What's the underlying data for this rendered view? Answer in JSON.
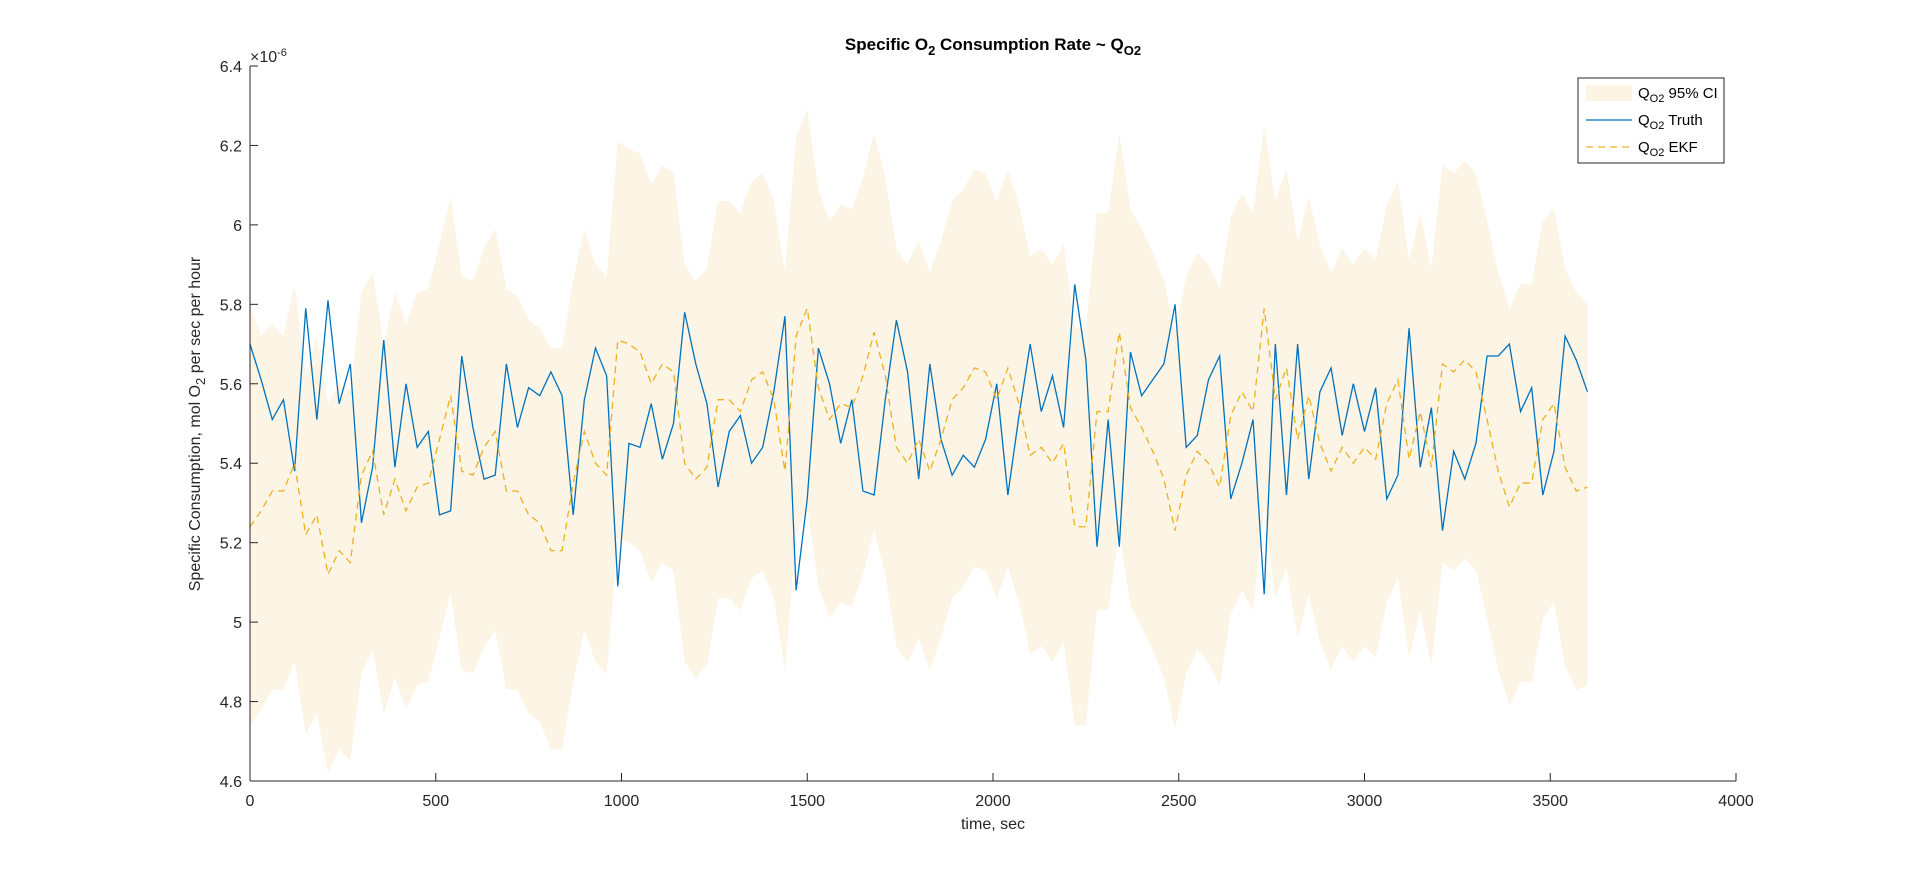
{
  "chart_data": {
    "type": "line",
    "title": [
      "Specific O",
      "2",
      " Consumption Rate ~ Q",
      "O2"
    ],
    "x_label": "time, sec",
    "y_label": [
      "Specific Consumption, mol O",
      "2",
      " per sec per hour"
    ],
    "y_exponent": [
      "×10",
      "-6"
    ],
    "xlim": [
      0,
      4000
    ],
    "xticks": [
      0,
      500,
      1000,
      1500,
      2000,
      2500,
      3000,
      3500,
      4000
    ],
    "ylim": [
      4.6,
      6.4
    ],
    "yticks": [
      4.6,
      4.8,
      5,
      5.2,
      5.4,
      5.6,
      5.8,
      6,
      6.2,
      6.4
    ],
    "legend": "top-right",
    "x": [
      0,
      30,
      60,
      90,
      120,
      150,
      180,
      210,
      240,
      270,
      300,
      330,
      360,
      390,
      420,
      450,
      480,
      510,
      540,
      570,
      600,
      630,
      660,
      690,
      720,
      750,
      780,
      810,
      840,
      870,
      900,
      930,
      960,
      990,
      1020,
      1050,
      1080,
      1110,
      1140,
      1170,
      1200,
      1230,
      1260,
      1290,
      1320,
      1350,
      1380,
      1410,
      1440,
      1470,
      1500,
      1530,
      1560,
      1590,
      1620,
      1650,
      1680,
      1710,
      1740,
      1770,
      1800,
      1830,
      1860,
      1890,
      1920,
      1950,
      1980,
      2010,
      2040,
      2070,
      2100,
      2130,
      2160,
      2190,
      2220,
      2250,
      2280,
      2310,
      2340,
      2370,
      2400,
      2430,
      2460,
      2490,
      2520,
      2550,
      2580,
      2610,
      2640,
      2670,
      2700,
      2730,
      2760,
      2790,
      2820,
      2850,
      2880,
      2910,
      2940,
      2970,
      3000,
      3030,
      3060,
      3090,
      3120,
      3150,
      3180,
      3210,
      3240,
      3270,
      3300,
      3330,
      3360,
      3390,
      3420,
      3450,
      3480,
      3510,
      3540,
      3570,
      3600
    ],
    "series": [
      {
        "name": [
          "Q",
          "O2",
          " 95% CI"
        ],
        "kind": "band",
        "color": "#fcf4e4",
        "upper": [
          5.8,
          5.72,
          5.75,
          5.72,
          5.85,
          5.62,
          5.72,
          5.55,
          5.6,
          5.58,
          5.83,
          5.88,
          5.7,
          5.83,
          5.75,
          5.83,
          5.84,
          5.95,
          6.07,
          5.87,
          5.86,
          5.94,
          5.99,
          5.84,
          5.82,
          5.76,
          5.74,
          5.69,
          5.69,
          5.86,
          5.99,
          5.9,
          5.87,
          6.21,
          6.19,
          6.18,
          6.1,
          6.15,
          6.13,
          5.9,
          5.86,
          5.89,
          6.06,
          6.06,
          6.03,
          6.11,
          6.13,
          6.06,
          5.88,
          6.22,
          6.29,
          6.09,
          6.01,
          6.05,
          6.04,
          6.12,
          6.23,
          6.12,
          5.94,
          5.9,
          5.96,
          5.88,
          5.96,
          6.06,
          6.09,
          6.14,
          6.13,
          6.06,
          6.14,
          6.05,
          5.92,
          5.94,
          5.9,
          5.95,
          5.74,
          5.74,
          6.03,
          6.03,
          6.23,
          6.04,
          5.99,
          5.93,
          5.86,
          5.73,
          5.87,
          5.93,
          5.9,
          5.84,
          6.02,
          6.08,
          6.03,
          6.25,
          6.06,
          6.14,
          5.96,
          6.07,
          5.95,
          5.88,
          5.94,
          5.9,
          5.94,
          5.91,
          6.05,
          6.11,
          5.91,
          6.03,
          5.89,
          6.15,
          6.13,
          6.16,
          6.13,
          6.01,
          5.88,
          5.79,
          5.85,
          5.85,
          6.01,
          6.04,
          5.89,
          5.83,
          5.8
        ],
        "lower": [
          4.74,
          4.78,
          4.83,
          4.83,
          4.9,
          4.72,
          4.77,
          4.62,
          4.68,
          4.65,
          4.87,
          4.93,
          4.77,
          4.86,
          4.78,
          4.84,
          4.85,
          4.96,
          5.07,
          4.88,
          4.87,
          4.94,
          4.98,
          4.83,
          4.83,
          4.77,
          4.75,
          4.68,
          4.68,
          4.85,
          4.98,
          4.9,
          4.87,
          5.21,
          5.2,
          5.18,
          5.1,
          5.15,
          5.13,
          4.9,
          4.86,
          4.89,
          5.06,
          5.06,
          5.03,
          5.11,
          5.13,
          5.06,
          4.88,
          5.22,
          5.29,
          5.09,
          5.01,
          5.05,
          5.04,
          5.12,
          5.23,
          5.12,
          4.94,
          4.9,
          4.96,
          4.88,
          4.96,
          5.06,
          5.09,
          5.14,
          5.13,
          5.06,
          5.14,
          5.05,
          4.92,
          4.94,
          4.9,
          4.95,
          4.74,
          4.74,
          5.03,
          5.03,
          5.23,
          5.04,
          4.99,
          4.93,
          4.86,
          4.73,
          4.87,
          4.93,
          4.9,
          4.84,
          5.02,
          5.08,
          5.03,
          5.29,
          5.06,
          5.14,
          4.96,
          5.07,
          4.95,
          4.88,
          4.94,
          4.9,
          4.94,
          4.91,
          5.05,
          5.11,
          4.91,
          5.03,
          4.89,
          5.15,
          5.13,
          5.16,
          5.13,
          5.01,
          4.88,
          4.79,
          4.85,
          4.85,
          5.01,
          5.05,
          4.89,
          4.83,
          4.84
        ]
      },
      {
        "name": [
          "Q",
          "O2",
          " Truth"
        ],
        "kind": "line",
        "color": "#0072bd",
        "line_style": "solid",
        "values": [
          5.7,
          5.61,
          5.51,
          5.56,
          5.38,
          5.79,
          5.51,
          5.81,
          5.55,
          5.65,
          5.25,
          5.39,
          5.71,
          5.39,
          5.6,
          5.44,
          5.48,
          5.27,
          5.28,
          5.67,
          5.49,
          5.36,
          5.37,
          5.65,
          5.49,
          5.59,
          5.57,
          5.63,
          5.57,
          5.27,
          5.56,
          5.69,
          5.62,
          5.09,
          5.45,
          5.44,
          5.55,
          5.41,
          5.5,
          5.78,
          5.65,
          5.55,
          5.34,
          5.48,
          5.52,
          5.4,
          5.44,
          5.58,
          5.77,
          5.08,
          5.31,
          5.69,
          5.6,
          5.45,
          5.56,
          5.33,
          5.32,
          5.56,
          5.76,
          5.63,
          5.36,
          5.65,
          5.46,
          5.37,
          5.42,
          5.39,
          5.46,
          5.6,
          5.32,
          5.52,
          5.7,
          5.53,
          5.62,
          5.49,
          5.85,
          5.66,
          5.19,
          5.51,
          5.19,
          5.68,
          5.57,
          5.61,
          5.65,
          5.8,
          5.44,
          5.47,
          5.61,
          5.67,
          5.31,
          5.4,
          5.51,
          5.07,
          5.7,
          5.32,
          5.7,
          5.36,
          5.58,
          5.64,
          5.47,
          5.6,
          5.48,
          5.59,
          5.31,
          5.37,
          5.74,
          5.39,
          5.54,
          5.23,
          5.43,
          5.36,
          5.45,
          5.67,
          5.67,
          5.7,
          5.53,
          5.59,
          5.32,
          5.43,
          5.72,
          5.66,
          5.58
        ]
      },
      {
        "name": [
          "Q",
          "O2",
          " EKF"
        ],
        "kind": "line",
        "color": "#edb120",
        "line_style": "dashed",
        "values": [
          5.24,
          5.28,
          5.33,
          5.33,
          5.4,
          5.22,
          5.27,
          5.12,
          5.18,
          5.15,
          5.37,
          5.43,
          5.27,
          5.36,
          5.28,
          5.34,
          5.35,
          5.46,
          5.57,
          5.38,
          5.37,
          5.44,
          5.48,
          5.33,
          5.33,
          5.27,
          5.25,
          5.18,
          5.18,
          5.35,
          5.48,
          5.4,
          5.37,
          5.71,
          5.7,
          5.68,
          5.6,
          5.65,
          5.63,
          5.4,
          5.36,
          5.39,
          5.56,
          5.56,
          5.53,
          5.61,
          5.63,
          5.56,
          5.38,
          5.72,
          5.79,
          5.59,
          5.51,
          5.55,
          5.54,
          5.62,
          5.73,
          5.62,
          5.44,
          5.4,
          5.46,
          5.38,
          5.46,
          5.56,
          5.59,
          5.64,
          5.63,
          5.56,
          5.64,
          5.55,
          5.42,
          5.44,
          5.4,
          5.45,
          5.24,
          5.24,
          5.53,
          5.53,
          5.73,
          5.54,
          5.49,
          5.43,
          5.36,
          5.23,
          5.37,
          5.43,
          5.4,
          5.34,
          5.52,
          5.58,
          5.53,
          5.79,
          5.56,
          5.64,
          5.46,
          5.57,
          5.45,
          5.38,
          5.44,
          5.4,
          5.44,
          5.41,
          5.55,
          5.61,
          5.41,
          5.53,
          5.39,
          5.65,
          5.63,
          5.66,
          5.63,
          5.51,
          5.38,
          5.29,
          5.35,
          5.35,
          5.51,
          5.55,
          5.39,
          5.33,
          5.34
        ]
      }
    ]
  }
}
